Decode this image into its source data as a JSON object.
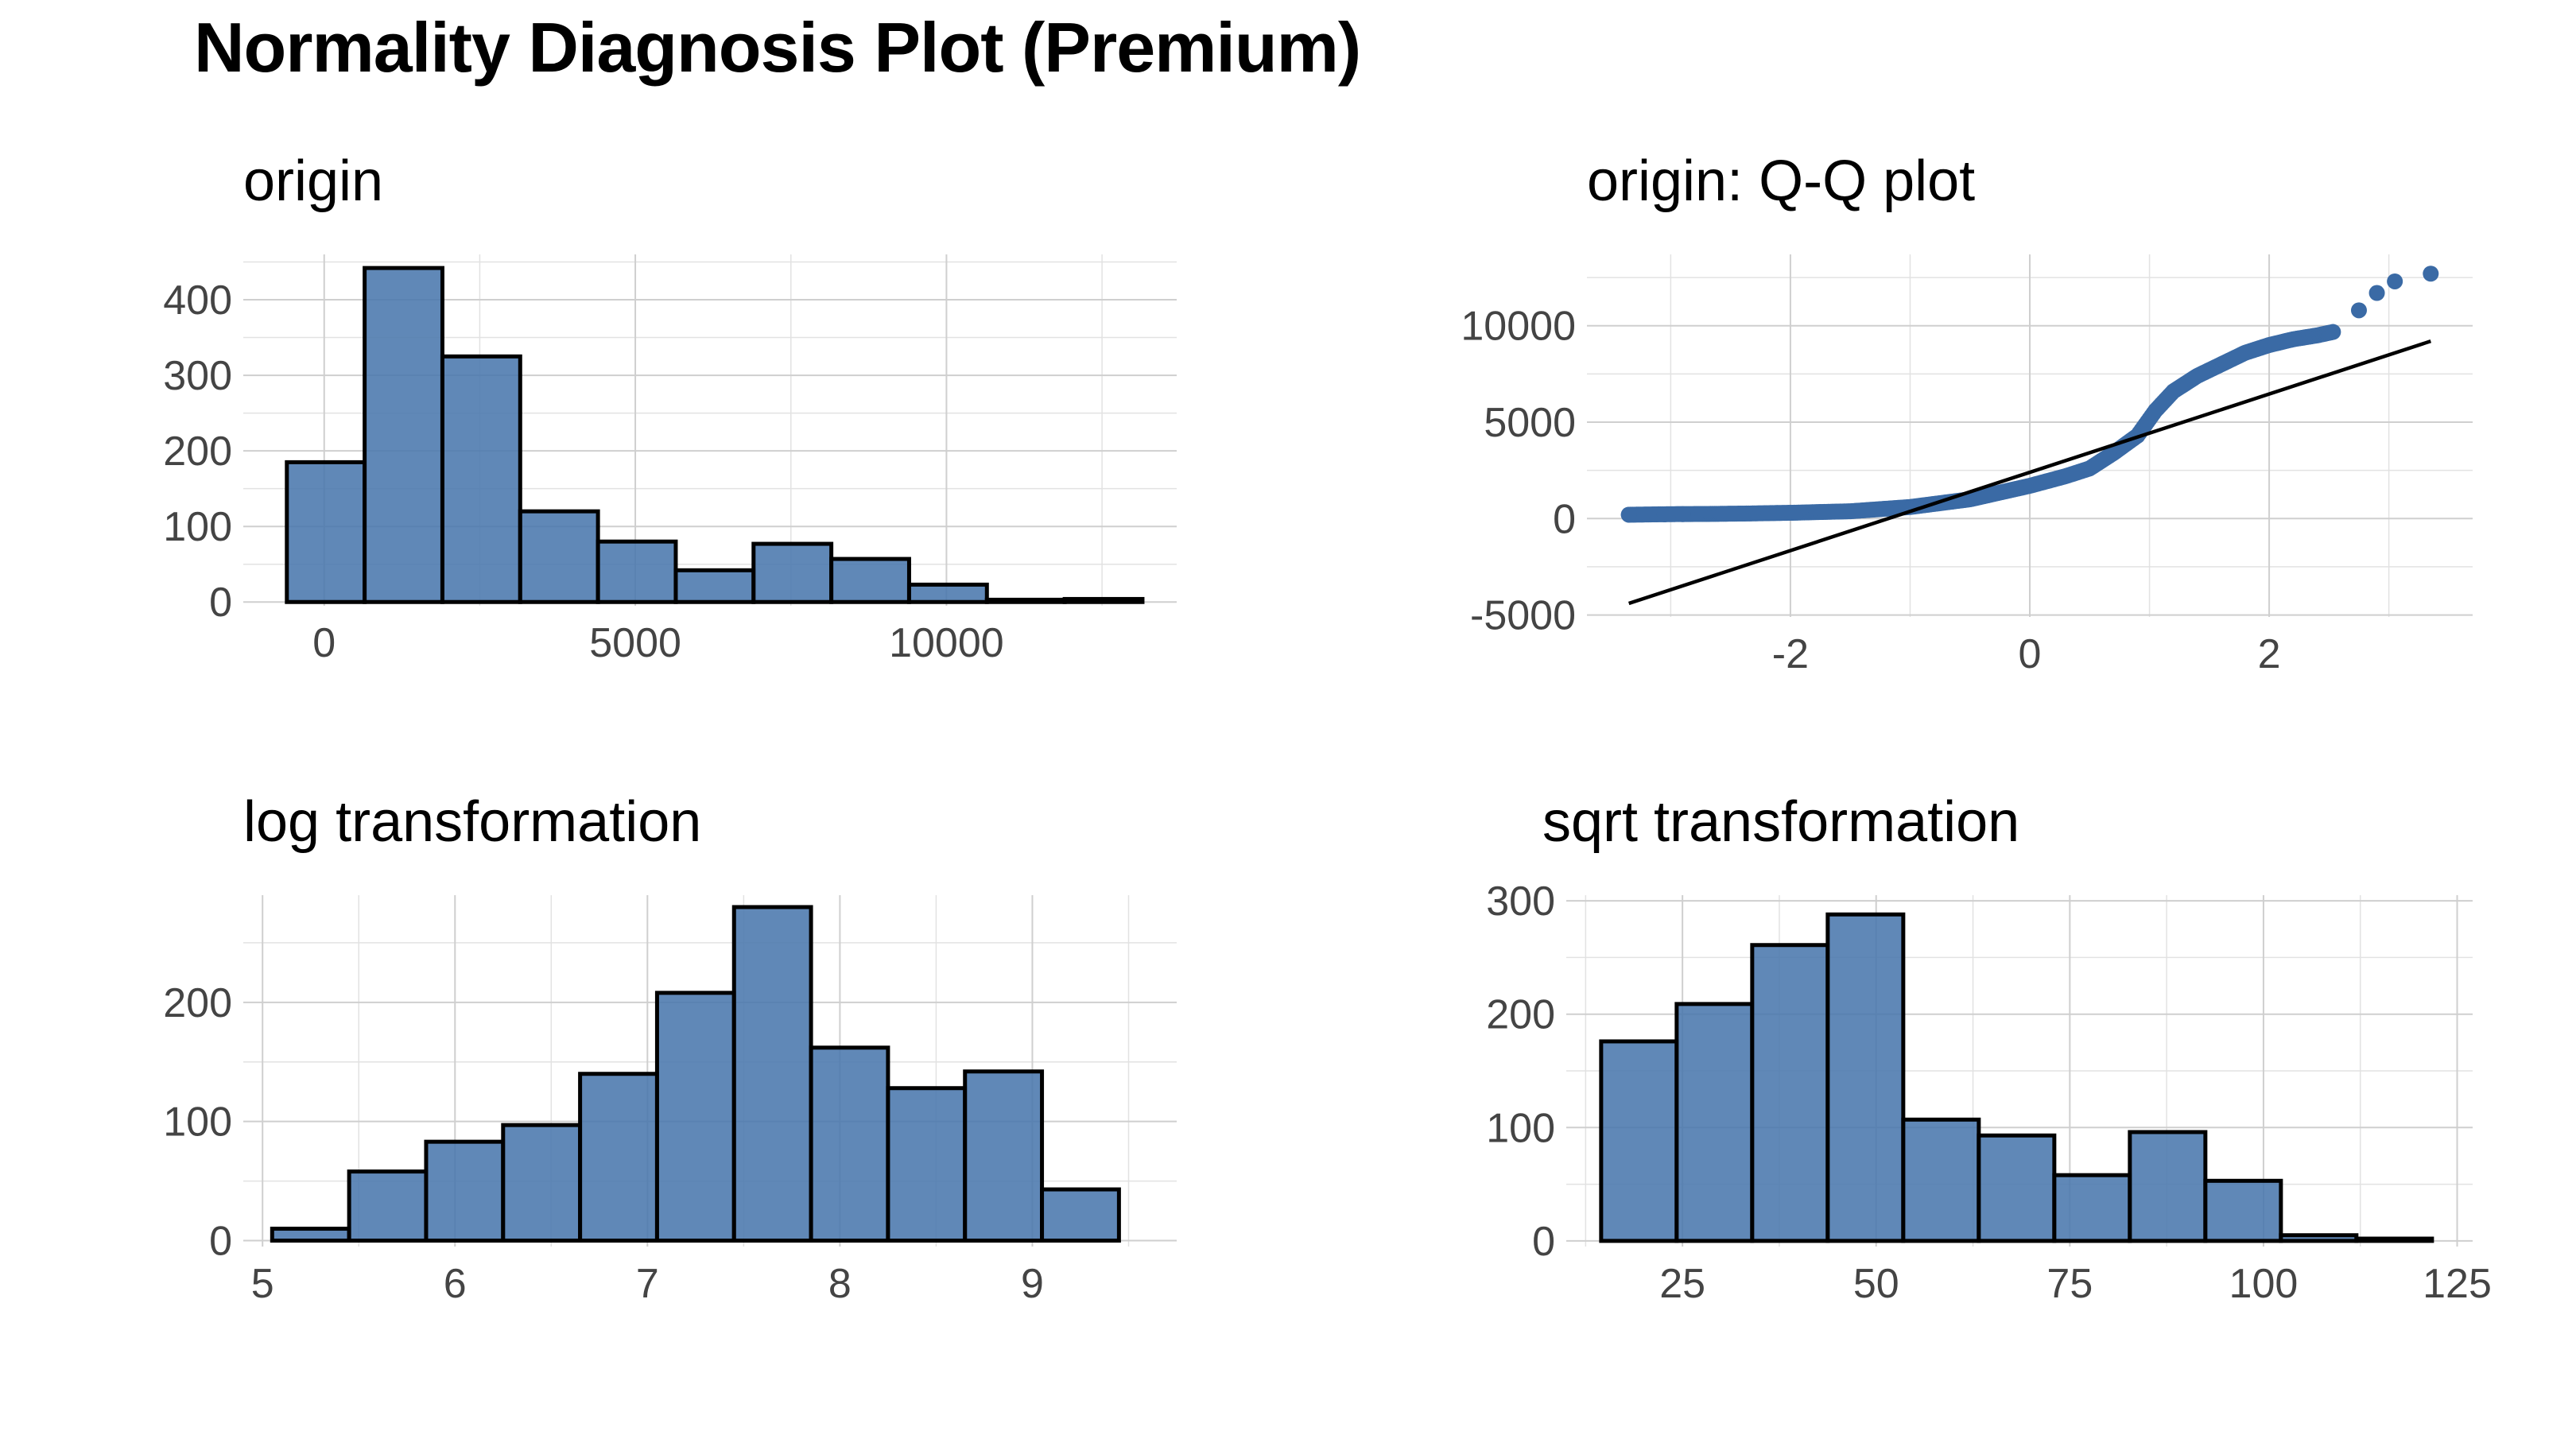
{
  "title": "Normality Diagnosis Plot (Premium)",
  "colors": {
    "fill": "#4a78ad",
    "point": "#3a6aa5",
    "outline": "#000000",
    "grid": "#cfcfcf"
  },
  "chart_data": [
    {
      "id": "origin",
      "type": "bar",
      "title": "origin",
      "bin_edges": [
        -600,
        650,
        1900,
        3150,
        4400,
        5650,
        6900,
        8150,
        9400,
        10650,
        11900,
        13150
      ],
      "values": [
        185,
        442,
        325,
        120,
        80,
        42,
        77,
        57,
        23,
        3,
        4
      ],
      "xlim": [
        -1300,
        13700
      ],
      "ylim": [
        -5,
        460
      ],
      "x_ticks": [
        0,
        5000,
        10000
      ],
      "y_ticks": [
        0,
        100,
        200,
        300,
        400
      ],
      "grid": true
    },
    {
      "id": "qq",
      "type": "scatter",
      "title": "origin: Q-Q plot",
      "xlim": [
        -3.7,
        3.7
      ],
      "ylim": [
        -5100,
        13700
      ],
      "x_ticks": [
        -2,
        0,
        2
      ],
      "y_ticks": [
        -5000,
        0,
        5000,
        10000
      ],
      "quantile_curve": {
        "theoretical": [
          -3.35,
          -3.0,
          -2.7,
          -2.4,
          -2.0,
          -1.5,
          -1.0,
          -0.5,
          0.0,
          0.3,
          0.5,
          0.7,
          0.9,
          1.05,
          1.2,
          1.4,
          1.6,
          1.8,
          2.0,
          2.2,
          2.4,
          2.55
        ],
        "sample": [
          200,
          230,
          240,
          260,
          300,
          380,
          600,
          1000,
          1700,
          2200,
          2600,
          3400,
          4300,
          5600,
          6600,
          7400,
          8000,
          8600,
          9000,
          9300,
          9500,
          9700
        ]
      },
      "outliers": [
        {
          "x": 2.75,
          "y": 10800
        },
        {
          "x": 2.9,
          "y": 11700
        },
        {
          "x": 3.05,
          "y": 12300
        },
        {
          "x": 3.35,
          "y": 12700
        }
      ],
      "reference_line": {
        "x": [
          -3.35,
          3.35
        ],
        "y": [
          -4400,
          9200
        ]
      },
      "grid": true
    },
    {
      "id": "log",
      "type": "bar",
      "title": "log transformation",
      "bin_edges": [
        5.05,
        5.45,
        5.85,
        6.25,
        6.65,
        7.05,
        7.45,
        7.85,
        8.25,
        8.65,
        9.05,
        9.45
      ],
      "values": [
        10,
        58,
        83,
        97,
        140,
        208,
        280,
        162,
        128,
        142,
        43
      ],
      "xlim": [
        4.9,
        9.75
      ],
      "ylim": [
        -5,
        290
      ],
      "x_ticks": [
        5,
        6,
        7,
        8,
        9
      ],
      "y_ticks": [
        0,
        100,
        200
      ],
      "grid": true
    },
    {
      "id": "sqrt",
      "type": "bar",
      "title": "sqrt transformation",
      "bin_edges": [
        14.5,
        24.25,
        34,
        43.75,
        53.5,
        63.25,
        73,
        82.75,
        92.5,
        102.25,
        112,
        121.75
      ],
      "values": [
        176,
        209,
        261,
        288,
        107,
        93,
        58,
        96,
        53,
        5,
        2
      ],
      "xlim": [
        10,
        127
      ],
      "ylim": [
        -5,
        305
      ],
      "x_ticks": [
        25,
        50,
        75,
        100,
        125
      ],
      "y_ticks": [
        0,
        100,
        200,
        300
      ],
      "grid": true
    }
  ]
}
